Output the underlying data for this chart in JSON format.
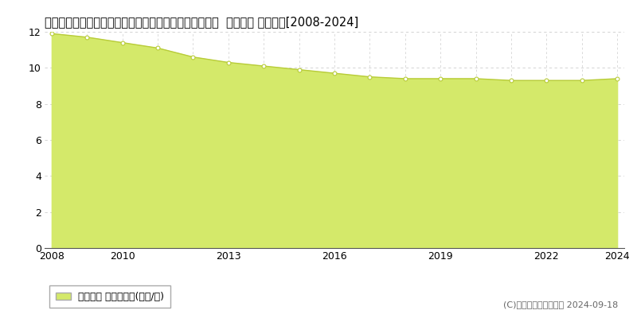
{
  "title": "佐賀県三養基郡上峰町大字坊所字二本谷２４５８番６外  基準地価 地価推移[2008-2024]",
  "years": [
    2008,
    2009,
    2010,
    2011,
    2012,
    2013,
    2014,
    2015,
    2016,
    2017,
    2018,
    2019,
    2020,
    2021,
    2022,
    2023,
    2024
  ],
  "values": [
    11.9,
    11.7,
    11.4,
    11.1,
    10.6,
    10.3,
    10.1,
    9.9,
    9.7,
    9.5,
    9.4,
    9.4,
    9.4,
    9.3,
    9.3,
    9.3,
    9.4
  ],
  "ylim": [
    0,
    12
  ],
  "yticks": [
    0,
    2,
    4,
    6,
    8,
    10,
    12
  ],
  "xticks": [
    2008,
    2010,
    2013,
    2016,
    2019,
    2022,
    2024
  ],
  "fill_color": "#d4e96a",
  "line_color": "#b8cc38",
  "marker_facecolor": "#ffffff",
  "marker_edgecolor": "#b8cc38",
  "bg_color": "#ffffff",
  "plot_bg_color": "#ffffff",
  "grid_h_color": "#cccccc",
  "grid_v_color": "#cccccc",
  "legend_label": "基準地価 平均坪単価(万円/坪)",
  "legend_marker_color": "#d4e96a",
  "copyright_text": "(C)土地価格ドットコム 2024-09-18",
  "title_fontsize": 10.5,
  "tick_fontsize": 9,
  "legend_fontsize": 9,
  "copyright_fontsize": 8
}
